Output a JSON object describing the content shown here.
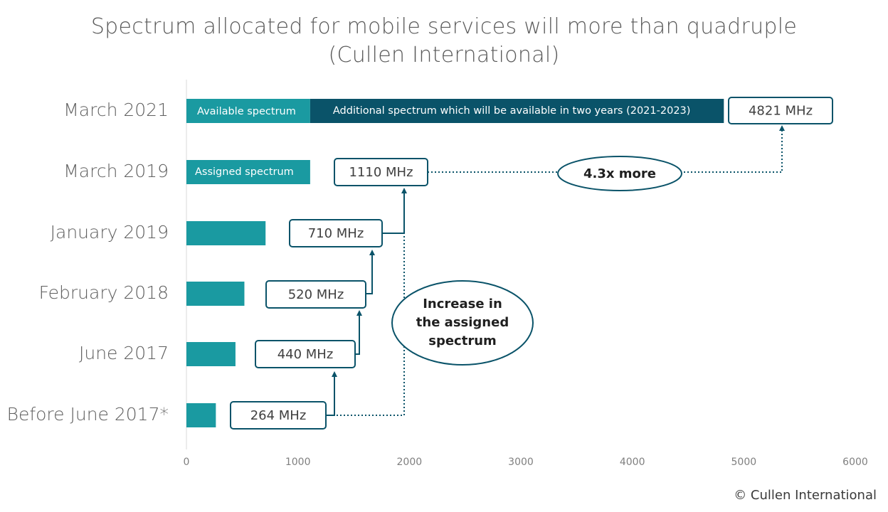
{
  "chart_data": {
    "type": "bar",
    "orientation": "horizontal",
    "title": "Spectrum allocated for mobile services will more than quadruple",
    "subtitle": "(Cullen International)",
    "categories": [
      "Before June 2017*",
      "June 2017",
      "February 2018",
      "January 2019",
      "March 2019",
      "March 2021"
    ],
    "series": [
      {
        "name": "Assigned spectrum",
        "values": [
          264,
          440,
          520,
          710,
          1110,
          1110
        ]
      },
      {
        "name": "Additional spectrum which will be available in two years (2021-2023)",
        "values": [
          0,
          0,
          0,
          0,
          0,
          3711
        ]
      }
    ],
    "segment_labels": {
      "march2021_first": "Available spectrum",
      "march2019": "Assigned spectrum"
    },
    "value_labels": [
      "264 MHz",
      "440 MHz",
      "520 MHz",
      "710 MHz",
      "1110 MHz",
      "4821 MHz"
    ],
    "x_ticks": [
      0,
      1000,
      2000,
      3000,
      4000,
      5000,
      6000
    ],
    "xlim": [
      0,
      6000
    ],
    "grid": false,
    "annotations": {
      "increase": [
        "Increase in",
        "the assigned",
        "spectrum"
      ],
      "multiplier": "4.3x more"
    },
    "colors": {
      "assigned": "#1a9aa1",
      "additional": "#0a5369",
      "box_border": "#0a5369",
      "connector": "#0a5369"
    }
  },
  "footer": {
    "copyright": "© Cullen International"
  }
}
